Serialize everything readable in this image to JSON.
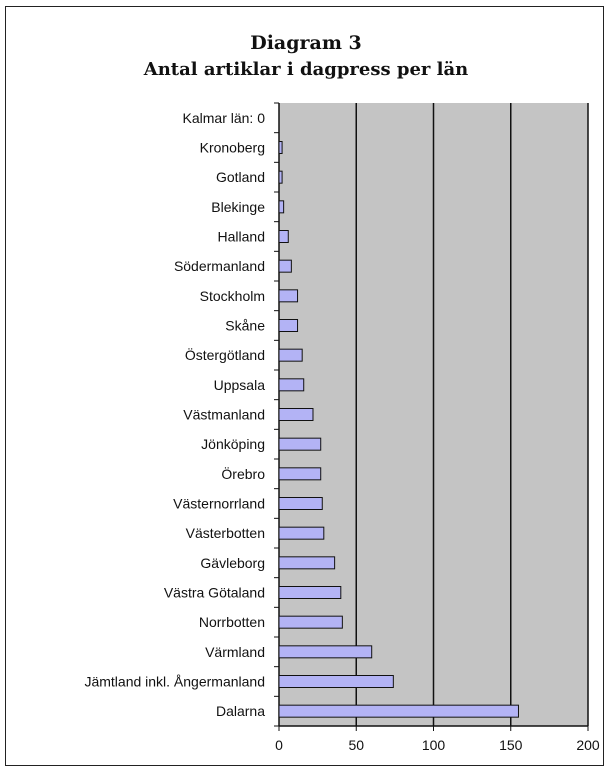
{
  "chart_data": {
    "type": "bar",
    "orientation": "horizontal",
    "title": "Diagram 3",
    "subtitle": "Antal artiklar i dagpress per län",
    "xlim": [
      0,
      200
    ],
    "x_ticks": [
      0,
      50,
      100,
      150,
      200
    ],
    "grid": true,
    "bar_color": "#b3b3f5",
    "plot_background": "#c4c4c4",
    "categories": [
      "Kalmar län: 0",
      "Kronoberg",
      "Gotland",
      "Blekinge",
      "Halland",
      "Södermanland",
      "Stockholm",
      "Skåne",
      "Östergötland",
      "Uppsala",
      "Västmanland",
      "Jönköping",
      "Örebro",
      "Västernorrland",
      "Västerbotten",
      "Gävleborg",
      "Västra Götaland",
      "Norrbotten",
      "Värmland",
      "Jämtland inkl. Ångermanland",
      "Dalarna"
    ],
    "values": [
      0,
      2,
      2,
      3,
      6,
      8,
      12,
      12,
      15,
      16,
      22,
      27,
      27,
      28,
      29,
      36,
      40,
      41,
      60,
      74,
      155
    ]
  }
}
